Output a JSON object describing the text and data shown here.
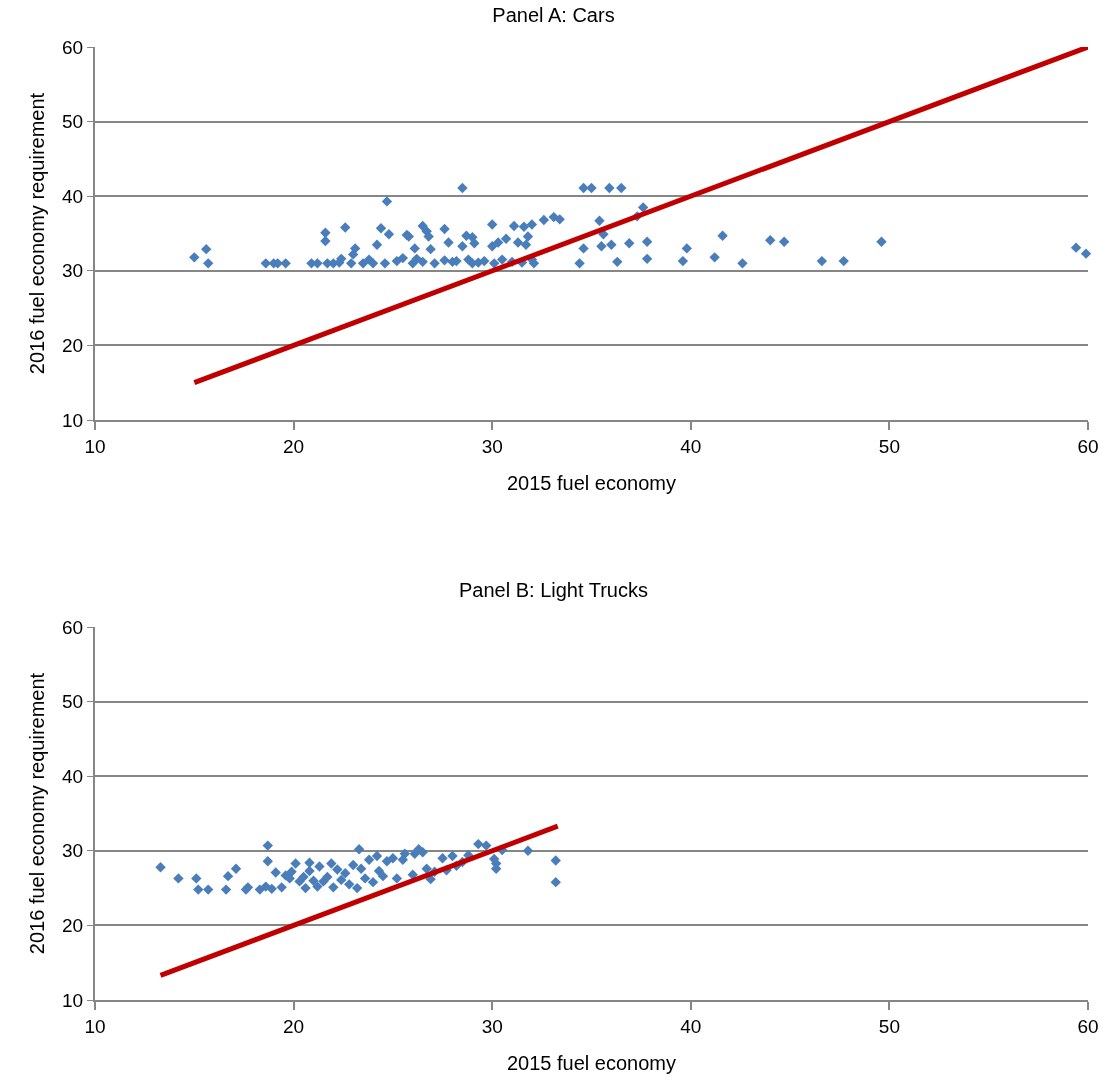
{
  "chart_data": [
    {
      "type": "scatter",
      "title": "Panel A: Cars",
      "xlabel": "2015 fuel economy",
      "ylabel": "2016 fuel economy requirement",
      "xlim": [
        10,
        60
      ],
      "ylim": [
        10,
        60
      ],
      "xticks": [
        10,
        20,
        30,
        40,
        50,
        60
      ],
      "yticks": [
        10,
        20,
        30,
        40,
        50,
        60
      ],
      "grid": "y",
      "series": [
        {
          "marker": "diamond",
          "color": "#4a7ebb",
          "x": [
            15,
            15.6,
            15.7,
            18.6,
            19,
            19.2,
            19.6,
            20.9,
            21.2,
            21.6,
            21.6,
            21.7,
            22,
            22.3,
            22.4,
            22.6,
            22.9,
            23,
            23.1,
            23.5,
            23.8,
            24,
            24.2,
            24.4,
            24.6,
            24.7,
            24.8,
            25.2,
            25.5,
            25.7,
            25.8,
            26,
            26.1,
            26.2,
            26.5,
            26.5,
            26.7,
            26.8,
            26.9,
            27.1,
            27.6,
            27.6,
            27.8,
            28,
            28.2,
            28.5,
            28.5,
            28.7,
            28.8,
            29,
            29,
            29.1,
            29.3,
            29.6,
            30,
            30,
            30.1,
            30.3,
            30.5,
            30.7,
            31,
            31.1,
            31.3,
            31.5,
            31.6,
            31.7,
            31.8,
            32,
            32,
            32.1,
            32.6,
            33.1,
            33.4,
            34.4,
            34.6,
            34.6,
            35,
            35.4,
            35.5,
            35.6,
            35.9,
            36,
            36.3,
            36.5,
            36.9,
            37.3,
            37.6,
            37.8,
            37.8,
            39.6,
            39.8,
            41.2,
            41.6,
            42.6,
            44,
            44.7,
            46.6,
            47.7,
            49.6,
            59.4,
            59.9
          ],
          "values": [
            31.8,
            32.9,
            31,
            31,
            31,
            31,
            31,
            31,
            31,
            35.1,
            34,
            31,
            31,
            31.1,
            31.6,
            35.8,
            31,
            32.2,
            33,
            31,
            31.5,
            31,
            33.5,
            35.7,
            31,
            39.3,
            34.9,
            31.3,
            31.7,
            34.8,
            34.6,
            31,
            33,
            31.6,
            31.2,
            36,
            35.3,
            34.6,
            32.9,
            31,
            35.6,
            31.4,
            33.8,
            31.2,
            31.3,
            33.3,
            41.1,
            34.7,
            31.5,
            31,
            34.5,
            33.7,
            31.1,
            31.3,
            33.3,
            36.2,
            31,
            33.8,
            31.5,
            34.3,
            31.2,
            36,
            33.8,
            31.1,
            35.9,
            33.5,
            34.6,
            36.2,
            31.5,
            31,
            36.8,
            37.2,
            36.9,
            31,
            33,
            41.1,
            41.1,
            36.7,
            33.3,
            34.9,
            41.1,
            33.5,
            31.2,
            41.1,
            33.7,
            37.3,
            38.5,
            33.9,
            31.6,
            31.3,
            33,
            31.8,
            34.7,
            31,
            34.1,
            33.9,
            31.3,
            31.3,
            33.9,
            33.1,
            32.3
          ]
        },
        {
          "type": "line",
          "marker": "none",
          "color": "#c00000",
          "x": [
            15,
            60
          ],
          "values": [
            15,
            60
          ]
        }
      ]
    },
    {
      "type": "scatter",
      "title": "Panel B: Light Trucks",
      "xlabel": "2015 fuel economy",
      "ylabel": "2016 fuel economy requirement",
      "xlim": [
        10,
        60
      ],
      "ylim": [
        10,
        60
      ],
      "xticks": [
        10,
        20,
        30,
        40,
        50,
        60
      ],
      "yticks": [
        10,
        20,
        30,
        40,
        50,
        60
      ],
      "grid": "y",
      "series": [
        {
          "marker": "diamond",
          "color": "#4a7ebb",
          "x": [
            13.3,
            14.2,
            15.1,
            15.2,
            15.7,
            16.6,
            16.7,
            17.1,
            17.6,
            17.7,
            18.3,
            18.6,
            18.7,
            18.7,
            18.9,
            19.1,
            19.4,
            19.6,
            19.8,
            19.9,
            20.1,
            20.3,
            20.5,
            20.6,
            20.8,
            20.8,
            21,
            21.2,
            21.3,
            21.5,
            21.7,
            21.9,
            22,
            22.2,
            22.4,
            22.6,
            22.8,
            23,
            23.2,
            23.3,
            23.4,
            23.6,
            23.8,
            24,
            24.2,
            24.3,
            24.5,
            24.7,
            25,
            25.2,
            25.5,
            25.6,
            26,
            26.1,
            26.3,
            26.5,
            26.7,
            26.9,
            27.1,
            27.5,
            27.7,
            28,
            28.2,
            28.5,
            28.8,
            29.3,
            29.7,
            30.1,
            30.2,
            30.2,
            30.5,
            31.8,
            33.2,
            33.2
          ],
          "values": [
            27.8,
            26.3,
            26.3,
            24.8,
            24.8,
            24.8,
            26.6,
            27.6,
            24.8,
            25.1,
            24.8,
            25.2,
            28.6,
            30.7,
            24.9,
            27.1,
            25.1,
            26.7,
            26.3,
            27.2,
            28.3,
            25.9,
            26.5,
            25,
            27.3,
            28.4,
            26,
            25.2,
            27.9,
            25.9,
            26.5,
            28.3,
            25.1,
            27.5,
            26.1,
            27,
            25.5,
            28.1,
            25,
            30.2,
            27.6,
            26.3,
            28.8,
            25.8,
            29.3,
            27.3,
            26.6,
            28.6,
            29,
            26.3,
            28.8,
            29.6,
            26.8,
            29.6,
            30.2,
            29.8,
            27.6,
            26.2,
            27.2,
            29,
            27.4,
            29.3,
            28,
            28.5,
            29.4,
            30.9,
            30.7,
            28.9,
            27.6,
            28.3,
            30.1,
            30,
            28.7,
            25.8
          ]
        },
        {
          "type": "line",
          "marker": "none",
          "color": "#c00000",
          "x": [
            13.3,
            33.3
          ],
          "values": [
            13.3,
            33.3
          ]
        }
      ]
    }
  ]
}
